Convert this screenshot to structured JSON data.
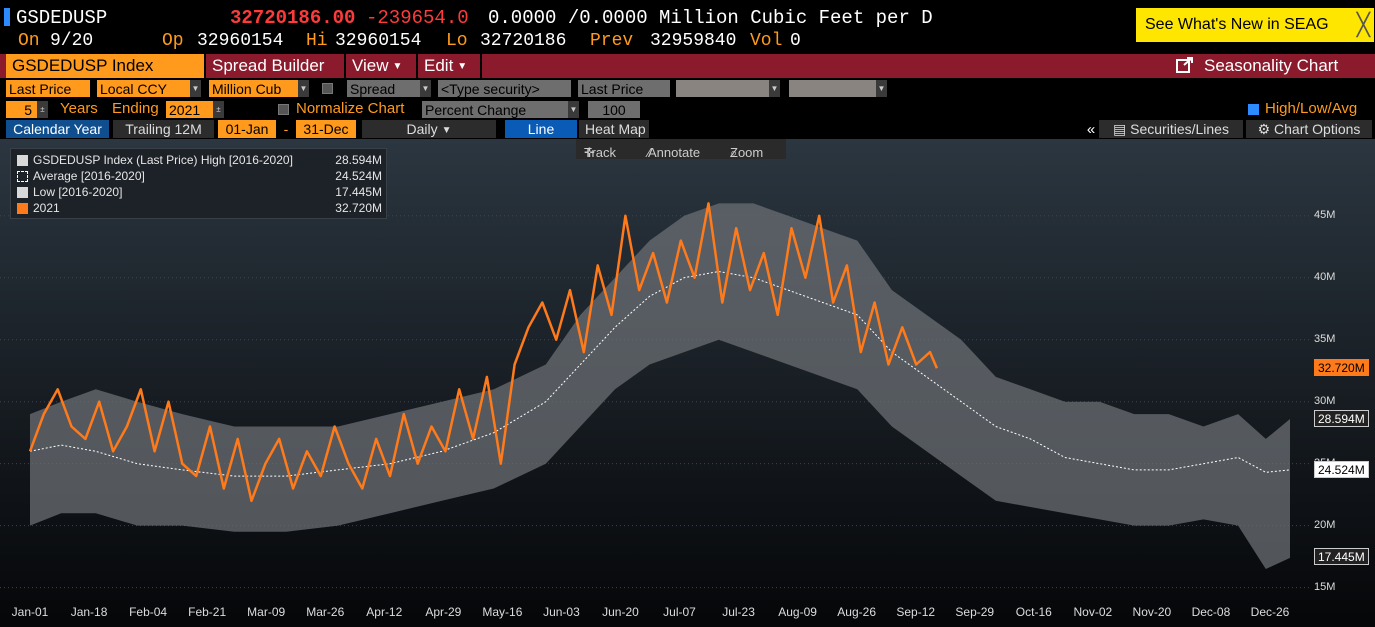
{
  "quote": {
    "ticker": "GSDEDUSP",
    "last": "32720186.00",
    "change": "-239654.0",
    "bid_ask": "0.0000 /0.0000",
    "units": "Million Cubic Feet per D",
    "on_label": "On",
    "on_date": "9/20",
    "op_label": "Op",
    "op": "32960154",
    "hi_label": "Hi",
    "hi": "32960154",
    "lo_label": "Lo",
    "lo": "32720186",
    "prev_label": "Prev",
    "prev": "32959840",
    "vol_label": "Vol",
    "vol": "0"
  },
  "promo": {
    "text": "See What's New in SEAG",
    "close": "╳"
  },
  "menubar": {
    "security": "GSDEDUSP Index",
    "spread_builder": "Spread Builder",
    "view": "View",
    "edit": "Edit",
    "seasonality": "Seasonality Chart"
  },
  "controls": {
    "field": "Last Price",
    "currency": "Local CCY",
    "unit": "Million Cub",
    "spread": "Spread",
    "type_security": "<Type security>",
    "field2": "Last Price",
    "years": "5",
    "years_label": "Years",
    "ending_label": "Ending",
    "ending_year": "2021",
    "normalize_label": "Normalize Chart",
    "normalize_mode": "Percent Change",
    "normalize_base": "100",
    "hla_label": "High/Low/Avg"
  },
  "tabs": {
    "calendar_year": "Calendar Year",
    "trailing": "Trailing 12M",
    "start": "01-Jan",
    "dash": "-",
    "end": "31-Dec",
    "frequency": "Daily",
    "line": "Line",
    "heat_map": "Heat Map",
    "collapse": "«",
    "securities_lines": "Securities/Lines",
    "chart_options": "Chart Options"
  },
  "tools": {
    "track": "Track",
    "annotate": "Annotate",
    "zoom": "Zoom"
  },
  "legend": [
    {
      "label": "GSDEDUSP Index (Last Price) High [2016-2020]",
      "value": "28.594M",
      "color": "#d9d9d9"
    },
    {
      "label": "Average  [2016-2020]",
      "value": "24.524M",
      "color": "#ffffff"
    },
    {
      "label": "Low  [2016-2020]",
      "value": "17.445M",
      "color": "#d9d9d9"
    },
    {
      "label": "2021",
      "value": "32.720M",
      "color": "#ff7a1a"
    }
  ],
  "colors": {
    "accent": "#ff9a1c",
    "menu": "#8b1a2c",
    "series": "#ff7a1a",
    "band": "#6b6f74",
    "bg_top": "#2b3640",
    "bg_bottom": "#050608"
  },
  "chart_data": {
    "type": "line",
    "x_ticks": [
      "Jan-01",
      "Jan-18",
      "Feb-04",
      "Feb-21",
      "Mar-09",
      "Mar-26",
      "Apr-12",
      "Apr-29",
      "May-16",
      "Jun-03",
      "Jun-20",
      "Jul-07",
      "Jul-23",
      "Aug-09",
      "Aug-26",
      "Sep-12",
      "Sep-29",
      "Oct-16",
      "Nov-02",
      "Nov-20",
      "Dec-08",
      "Dec-26"
    ],
    "y_ticks": [
      "15M",
      "20M",
      "25M",
      "30M",
      "35M",
      "40M",
      "45M"
    ],
    "ylim": [
      14,
      49.5
    ],
    "xlim": [
      1,
      365
    ],
    "badges": [
      {
        "value": 32.72,
        "label": "32.720M",
        "style": "orange"
      },
      {
        "value": 28.594,
        "label": "28.594M",
        "style": "light"
      },
      {
        "value": 24.524,
        "label": "24.524M",
        "style": "white"
      },
      {
        "value": 17.445,
        "label": "17.445M",
        "style": "light"
      }
    ],
    "band": {
      "day": [
        1,
        10,
        20,
        32,
        45,
        60,
        75,
        90,
        105,
        120,
        135,
        150,
        160,
        170,
        180,
        190,
        200,
        210,
        220,
        230,
        240,
        250,
        260,
        270,
        280,
        290,
        300,
        310,
        320,
        330,
        340,
        350,
        358,
        365
      ],
      "high": [
        29,
        30,
        31,
        30,
        29,
        28,
        28,
        28,
        29,
        30,
        31,
        33,
        37,
        40,
        43,
        45,
        46,
        46,
        45,
        44,
        43,
        39,
        37,
        35,
        32,
        31,
        30,
        30,
        29,
        29,
        28,
        29,
        27,
        28.6
      ],
      "avg": [
        26,
        26.5,
        26,
        25,
        24.5,
        24,
        24,
        24.5,
        25,
        26,
        27.5,
        30,
        33,
        36,
        38.5,
        40,
        40.5,
        40,
        39,
        38,
        37,
        34,
        32,
        30,
        28,
        27,
        25.5,
        25,
        24.5,
        24.5,
        25,
        25.5,
        24.3,
        24.5
      ],
      "low": [
        20,
        21,
        21,
        20,
        20,
        19.5,
        19.5,
        20,
        21,
        22,
        23,
        25,
        28,
        31,
        33,
        34,
        35,
        34,
        33,
        32,
        31,
        28,
        26,
        24,
        22,
        21.5,
        21,
        20.5,
        20,
        20,
        20.5,
        20,
        16.5,
        17.4
      ]
    },
    "series": [
      {
        "name": "2021",
        "day": [
          1,
          5,
          9,
          13,
          17,
          21,
          25,
          29,
          33,
          37,
          41,
          45,
          49,
          53,
          57,
          61,
          65,
          69,
          73,
          77,
          81,
          85,
          89,
          93,
          97,
          101,
          105,
          109,
          113,
          117,
          121,
          125,
          129,
          133,
          137,
          141,
          145,
          149,
          153,
          157,
          161,
          165,
          169,
          173,
          177,
          181,
          185,
          189,
          193,
          197,
          201,
          205,
          209,
          213,
          217,
          221,
          225,
          229,
          233,
          237,
          241,
          245,
          249,
          253,
          257,
          261,
          263
        ],
        "value": [
          26,
          29,
          31,
          28,
          27,
          30,
          26,
          28,
          31,
          26,
          30,
          25,
          24,
          28,
          23,
          27,
          22,
          25,
          27,
          23,
          26,
          24,
          28,
          25,
          23,
          27,
          24,
          29,
          25,
          28,
          26,
          31,
          27,
          32,
          25,
          33,
          36,
          38,
          35,
          39,
          34,
          41,
          37,
          45,
          39,
          42,
          38,
          43,
          40,
          46,
          38,
          44,
          39,
          42,
          37,
          44,
          40,
          45,
          38,
          41,
          34,
          38,
          33,
          36,
          33,
          34,
          32.7
        ]
      }
    ]
  }
}
